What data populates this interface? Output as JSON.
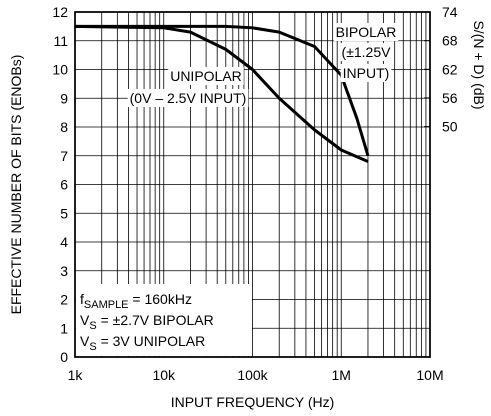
{
  "chart_data": {
    "type": "line",
    "xlabel": "INPUT FREQUENCY (Hz)",
    "ylabel": "EFFECTIVE NUMBER OF BITS (ENOBs)",
    "y2label": "S/(N + D) (dB)",
    "xscale": "log",
    "xlim": [
      1000,
      10000000
    ],
    "xticks": [
      {
        "value": 1000,
        "label": "1k"
      },
      {
        "value": 10000,
        "label": "10k"
      },
      {
        "value": 100000,
        "label": "100k"
      },
      {
        "value": 1000000,
        "label": "1M"
      },
      {
        "value": 10000000,
        "label": "10M"
      }
    ],
    "xminorticks": [
      2000,
      3000,
      4000,
      5000,
      6000,
      7000,
      8000,
      9000,
      20000,
      30000,
      40000,
      50000,
      60000,
      70000,
      80000,
      90000,
      200000,
      300000,
      400000,
      500000,
      600000,
      700000,
      800000,
      900000,
      2000000,
      3000000,
      4000000,
      5000000,
      6000000,
      7000000,
      8000000,
      9000000
    ],
    "ylim": [
      0,
      12
    ],
    "yticks": [
      0,
      1,
      2,
      3,
      4,
      5,
      6,
      7,
      8,
      9,
      10,
      11,
      12
    ],
    "y2lim": [
      1.76,
      74
    ],
    "y2ticks": [
      50,
      56,
      62,
      68,
      74
    ],
    "grid": true,
    "series": [
      {
        "name": "BIPOLAR",
        "color": "#000000",
        "x": [
          1000,
          10000,
          50000,
          100000,
          200000,
          500000,
          1000000,
          1500000,
          2000000
        ],
        "values": [
          11.5,
          11.5,
          11.5,
          11.45,
          11.3,
          10.8,
          9.8,
          8.3,
          7.0
        ]
      },
      {
        "name": "UNIPOLAR",
        "color": "#000000",
        "x": [
          1000,
          10000,
          20000,
          50000,
          100000,
          200000,
          500000,
          1000000,
          2000000
        ],
        "values": [
          11.5,
          11.45,
          11.3,
          10.7,
          10.0,
          9.0,
          7.9,
          7.2,
          6.8
        ]
      }
    ],
    "annotations": [
      {
        "text": "(±1.25V"
      },
      {
        "text": "INPUT)"
      },
      {
        "text": "(0V – 2.5V INPUT)"
      }
    ],
    "conditions": [
      {
        "text": "f",
        "sub": "SAMPLE",
        "rest": " = 160kHz"
      },
      {
        "text": "V",
        "sub": "S",
        "rest": " = ±2.7V BIPOLAR"
      },
      {
        "text": "V",
        "sub": "S",
        "rest": " = 3V UNIPOLAR"
      }
    ]
  }
}
